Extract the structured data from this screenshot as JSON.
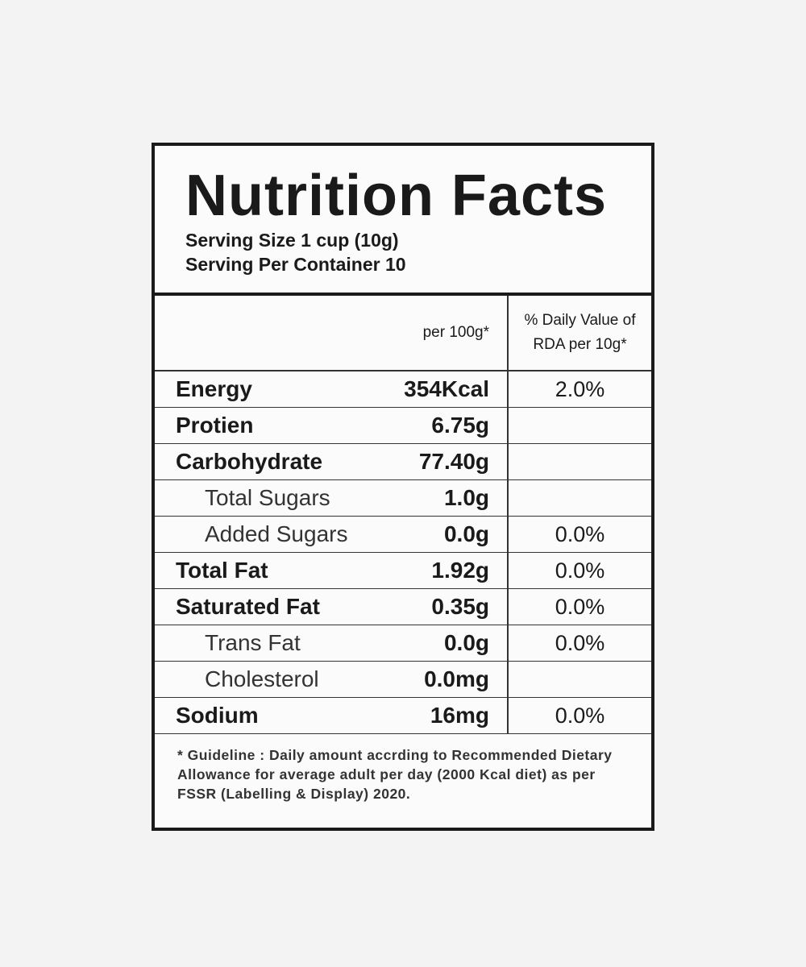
{
  "title": "Nutrition Facts",
  "serving_size": "Serving Size 1 cup (10g)",
  "servings_per_container": "Serving Per Container 10",
  "table": {
    "header": [
      "per 100g*",
      "% Daily Value of RDA per 10g*"
    ],
    "rows": [
      [
        "Energy",
        "354Kcal",
        "2.0%"
      ],
      [
        "Protien",
        "6.75g"
      ],
      [
        "Carbohydrate",
        "77.40g"
      ],
      [
        "Total Sugars",
        "1.0g"
      ],
      [
        "Added Sugars",
        "0.0g",
        "0.0%"
      ],
      [
        "Total Fat",
        "1.92g",
        "0.0%"
      ],
      [
        "Saturated Fat",
        "0.35g",
        "0.0%"
      ],
      [
        "Trans Fat",
        "0.0g",
        "0.0%"
      ],
      [
        "Cholesterol",
        "0.0mg"
      ],
      [
        "Sodium",
        "16mg",
        "0.0%"
      ]
    ]
  },
  "footnote": "* Guideline : Daily amount accrding to Recommended Dietary Allowance for average adult per day (2000 Kcal diet) as per FSSR (Labelling & Display) 2020."
}
